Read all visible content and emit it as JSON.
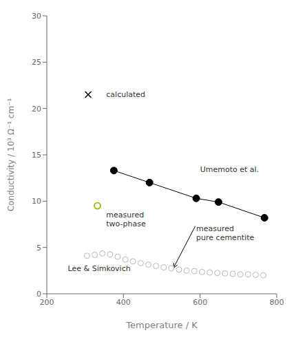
{
  "chart_data": {
    "type": "scatter",
    "xlabel": "Temperature / K",
    "ylabel": "Conductivity / 10³ Ω⁻¹ cm⁻¹",
    "xlim": [
      200,
      800
    ],
    "ylim": [
      0,
      30
    ],
    "xticks": [
      200,
      400,
      600,
      800
    ],
    "yticks": [
      0,
      5,
      10,
      15,
      20,
      25,
      30
    ],
    "grid": false,
    "series": [
      {
        "type": "line",
        "marker": "circle",
        "color": "#000000",
        "x": [
          375,
          468,
          590,
          648,
          768
        ],
        "values": [
          13.3,
          12.0,
          10.3,
          9.9,
          8.2
        ]
      },
      {
        "type": "scatter",
        "marker": "open circle",
        "color": "#b8b8b8",
        "x": [
          305,
          325,
          345,
          365,
          385,
          405,
          425,
          445,
          465,
          485,
          505,
          525,
          545,
          565,
          585,
          605,
          625,
          645,
          665,
          685,
          705,
          725,
          745,
          765
        ],
        "values": [
          4.1,
          4.2,
          4.35,
          4.25,
          4.0,
          3.7,
          3.5,
          3.3,
          3.15,
          3.0,
          2.85,
          2.75,
          2.6,
          2.5,
          2.45,
          2.35,
          2.3,
          2.25,
          2.2,
          2.15,
          2.1,
          2.1,
          2.05,
          2.0
        ]
      },
      {
        "type": "scatter",
        "marker": "x",
        "color": "#000000",
        "x": [
          308
        ],
        "values": [
          21.5
        ]
      },
      {
        "type": "scatter",
        "marker": "open circle",
        "color": "#99bb00",
        "x": [
          332
        ],
        "values": [
          9.5
        ]
      }
    ],
    "annotations": [
      {
        "text": "calculated",
        "x": 355,
        "y": 21.5
      },
      {
        "text": "measured\ntwo-phase",
        "x": 355,
        "y": 9.0
      },
      {
        "text": "Umemoto et al.",
        "x": 600,
        "y": 13.4
      },
      {
        "text": "Lee & Simkovich",
        "x": 255,
        "y": 3.2
      },
      {
        "text": "measured\npure cementite",
        "x": 590,
        "y": 7.5,
        "arrow_x": 530,
        "arrow_y": 2.75
      }
    ]
  }
}
